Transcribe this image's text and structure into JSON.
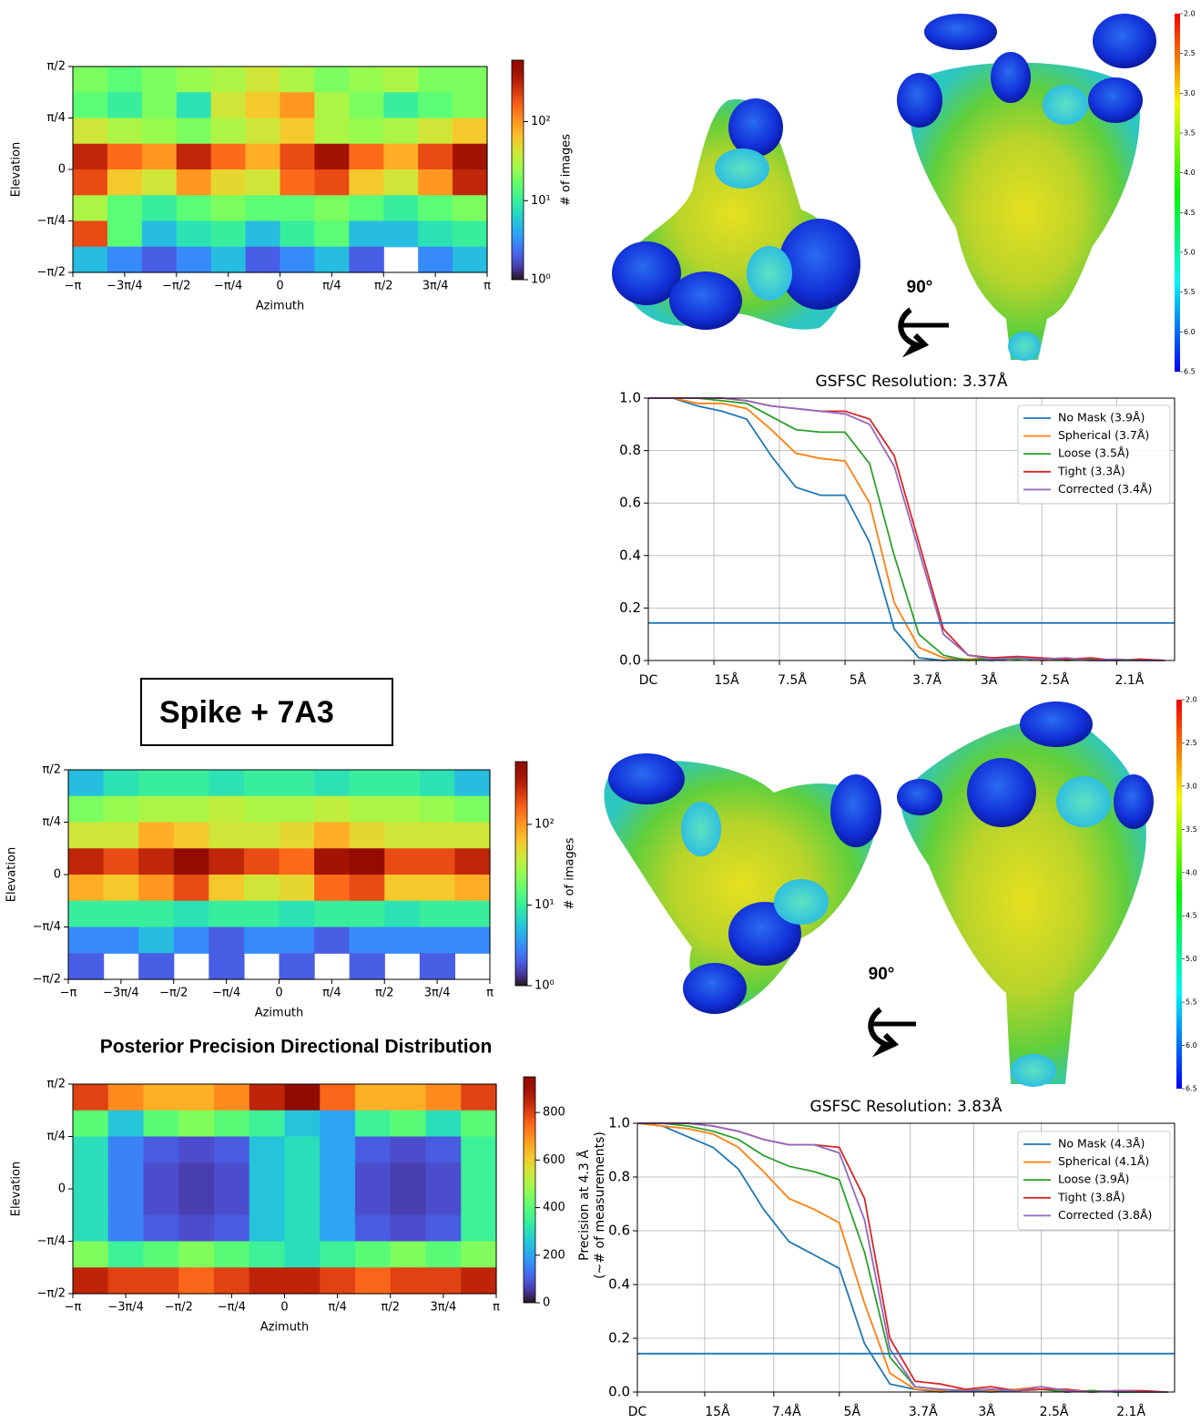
{
  "chart_data": [
    {
      "type": "heatmap",
      "xlabel": "Azimuth",
      "ylabel": "Elevation",
      "colormap": "turbo",
      "xlim": [
        -3.1416,
        3.1416
      ],
      "ylim": [
        -1.5708,
        1.5708
      ],
      "xticks": [
        {
          "value": -3.1416,
          "label": "−π"
        },
        {
          "value": -2.3562,
          "label": "−3π/4"
        },
        {
          "value": -1.5708,
          "label": "−π/2"
        },
        {
          "value": -0.7854,
          "label": "−π/4"
        },
        0,
        {
          "value": 0.7854,
          "label": "π/4"
        },
        {
          "value": 1.5708,
          "label": "π/2"
        },
        {
          "value": 2.3562,
          "label": "3π/4"
        },
        {
          "value": 3.1416,
          "label": "π"
        }
      ],
      "yticks": [
        {
          "value": -1.5708,
          "label": "−π/2"
        },
        {
          "value": -0.7854,
          "label": "−π/4"
        },
        0,
        {
          "value": 0.7854,
          "label": "π/4"
        },
        {
          "value": 1.5708,
          "label": "π/2"
        }
      ],
      "z": [
        [
          20,
          15,
          20,
          25,
          30,
          40,
          30,
          20,
          25,
          30,
          20,
          20
        ],
        [
          15,
          10,
          20,
          8,
          40,
          60,
          100,
          30,
          20,
          10,
          15,
          20
        ],
        [
          40,
          30,
          25,
          20,
          30,
          40,
          60,
          30,
          25,
          30,
          40,
          60
        ],
        [
          300,
          150,
          100,
          300,
          150,
          80,
          200,
          400,
          150,
          80,
          200,
          400
        ],
        [
          200,
          60,
          40,
          100,
          50,
          40,
          150,
          200,
          60,
          40,
          100,
          300
        ],
        [
          30,
          15,
          10,
          15,
          20,
          15,
          15,
          20,
          15,
          10,
          15,
          20
        ],
        [
          200,
          15,
          5,
          8,
          10,
          5,
          10,
          15,
          5,
          5,
          8,
          10
        ],
        [
          5,
          3,
          2,
          3,
          5,
          2,
          3,
          5,
          2,
          null,
          3,
          5
        ]
      ],
      "colorbar": {
        "label": "# of images",
        "scale": "log",
        "lim": [
          1,
          600
        ],
        "ticks": [
          {
            "value": 1,
            "label": "10⁰"
          },
          {
            "value": 10,
            "label": "10¹"
          },
          {
            "value": 100,
            "label": "10²"
          }
        ]
      }
    },
    {
      "type": "line",
      "title": "GSFSC Resolution: 3.37Å",
      "grid": true,
      "xlim": [
        0,
        0.535
      ],
      "ylim": [
        0,
        1
      ],
      "xticks": [
        {
          "value": 0,
          "label": "DC"
        },
        {
          "value": 0.0667,
          "label": "15Å"
        },
        {
          "value": 0.1333,
          "label": "7.5Å"
        },
        {
          "value": 0.2,
          "label": "5Å"
        },
        {
          "value": 0.2703,
          "label": "3.7Å"
        },
        {
          "value": 0.3333,
          "label": "3Å"
        },
        {
          "value": 0.4,
          "label": "2.5Å"
        },
        {
          "value": 0.4762,
          "label": "2.1Å"
        }
      ],
      "yticks": [
        {
          "value": 0,
          "label": "0.0"
        },
        0.2,
        0.4,
        0.6,
        0.8,
        {
          "value": 1,
          "label": "1.0"
        }
      ],
      "threshold": 0.143,
      "threshold_color": "#1f77b4",
      "x": [
        0,
        0.025,
        0.05,
        0.075,
        0.1,
        0.125,
        0.15,
        0.175,
        0.2,
        0.225,
        0.25,
        0.275,
        0.3,
        0.325,
        0.35,
        0.375,
        0.4,
        0.425,
        0.45,
        0.475,
        0.5,
        0.525
      ],
      "series": [
        {
          "name": "No Mask (3.9Å)",
          "color": "#1f77b4",
          "values": [
            1,
            1,
            0.97,
            0.95,
            0.92,
            0.78,
            0.66,
            0.63,
            0.63,
            0.45,
            0.12,
            0.01,
            0,
            0.005,
            0,
            0.01,
            0,
            0.005,
            0,
            0,
            0.005,
            0
          ]
        },
        {
          "name": "Spherical (3.7Å)",
          "color": "#ff7f0e",
          "values": [
            1,
            1,
            0.98,
            0.98,
            0.96,
            0.88,
            0.79,
            0.77,
            0.76,
            0.6,
            0.22,
            0.05,
            0.01,
            0.005,
            0.01,
            0.015,
            0,
            0.01,
            0,
            0.005,
            0,
            0
          ]
        },
        {
          "name": "Loose (3.5Å)",
          "color": "#2ca02c",
          "values": [
            1,
            1,
            1,
            0.99,
            0.98,
            0.93,
            0.88,
            0.87,
            0.87,
            0.75,
            0.4,
            0.1,
            0.02,
            0,
            0.01,
            0.005,
            0.01,
            0,
            0.005,
            0,
            0,
            0
          ]
        },
        {
          "name": "Tight (3.3Å)",
          "color": "#d62728",
          "values": [
            1,
            1,
            1,
            1,
            0.99,
            0.97,
            0.96,
            0.95,
            0.95,
            0.92,
            0.78,
            0.45,
            0.12,
            0.02,
            0.01,
            0.015,
            0.01,
            0.005,
            0.01,
            0,
            0.005,
            0
          ]
        },
        {
          "name": "Corrected (3.4Å)",
          "color": "#9467bd",
          "values": [
            1,
            1,
            1,
            1,
            0.99,
            0.97,
            0.96,
            0.95,
            0.94,
            0.9,
            0.74,
            0.42,
            0.1,
            0.02,
            0.005,
            0.01,
            0.005,
            0.01,
            0,
            0.005,
            0,
            0
          ]
        }
      ]
    },
    {
      "type": "heatmap",
      "xlabel": "Azimuth",
      "ylabel": "Elevation",
      "colormap": "turbo",
      "xlim": [
        -3.1416,
        3.1416
      ],
      "ylim": [
        -1.5708,
        1.5708
      ],
      "xticks": [
        {
          "value": -3.1416,
          "label": "−π"
        },
        {
          "value": -2.3562,
          "label": "−3π/4"
        },
        {
          "value": -1.5708,
          "label": "−π/2"
        },
        {
          "value": -0.7854,
          "label": "−π/4"
        },
        0,
        {
          "value": 0.7854,
          "label": "π/4"
        },
        {
          "value": 1.5708,
          "label": "π/2"
        },
        {
          "value": 2.3562,
          "label": "3π/4"
        },
        {
          "value": 3.1416,
          "label": "π"
        }
      ],
      "yticks": [
        {
          "value": -1.5708,
          "label": "−π/2"
        },
        {
          "value": -0.7854,
          "label": "−π/4"
        },
        0,
        {
          "value": 0.7854,
          "label": "π/4"
        },
        {
          "value": 1.5708,
          "label": "π/2"
        }
      ],
      "z": [
        [
          5,
          8,
          10,
          10,
          8,
          10,
          10,
          8,
          10,
          10,
          8,
          5
        ],
        [
          20,
          25,
          30,
          30,
          35,
          30,
          30,
          35,
          30,
          30,
          25,
          20
        ],
        [
          40,
          40,
          80,
          60,
          40,
          40,
          50,
          80,
          50,
          40,
          40,
          40
        ],
        [
          300,
          200,
          300,
          500,
          300,
          200,
          150,
          400,
          500,
          200,
          200,
          300
        ],
        [
          80,
          60,
          100,
          200,
          60,
          40,
          50,
          150,
          200,
          60,
          60,
          80
        ],
        [
          10,
          10,
          10,
          8,
          10,
          10,
          8,
          10,
          10,
          8,
          10,
          10
        ],
        [
          3,
          3,
          5,
          3,
          2,
          3,
          3,
          2,
          3,
          3,
          3,
          3
        ],
        [
          2,
          null,
          2,
          null,
          2,
          null,
          2,
          null,
          2,
          null,
          2,
          null
        ]
      ],
      "colorbar": {
        "label": "# of images",
        "scale": "log",
        "lim": [
          1,
          600
        ],
        "ticks": [
          {
            "value": 1,
            "label": "10⁰"
          },
          {
            "value": 10,
            "label": "10¹"
          },
          {
            "value": 100,
            "label": "10²"
          }
        ]
      }
    },
    {
      "type": "heatmap",
      "title": "Posterior Precision Directional Distribution",
      "xlabel": "Azimuth",
      "ylabel": "Elevation",
      "colormap": "turbo",
      "xlim": [
        -3.1416,
        3.1416
      ],
      "ylim": [
        -1.5708,
        1.5708
      ],
      "xticks": [
        {
          "value": -3.1416,
          "label": "−π"
        },
        {
          "value": -2.3562,
          "label": "−3π/4"
        },
        {
          "value": -1.5708,
          "label": "−π/2"
        },
        {
          "value": -0.7854,
          "label": "−π/4"
        },
        0,
        {
          "value": 0.7854,
          "label": "π/4"
        },
        {
          "value": 1.5708,
          "label": "π/2"
        },
        {
          "value": 2.3562,
          "label": "3π/4"
        },
        {
          "value": 3.1416,
          "label": "π"
        }
      ],
      "yticks": [
        {
          "value": -1.5708,
          "label": "−π/2"
        },
        {
          "value": -0.7854,
          "label": "−π/4"
        },
        0,
        {
          "value": 0.7854,
          "label": "π/4"
        },
        {
          "value": 1.5708,
          "label": "π/2"
        }
      ],
      "z": [
        [
          800,
          700,
          650,
          650,
          700,
          850,
          950,
          750,
          650,
          650,
          700,
          800
        ],
        [
          400,
          250,
          400,
          450,
          400,
          350,
          250,
          200,
          350,
          400,
          300,
          400
        ],
        [
          300,
          150,
          100,
          80,
          100,
          250,
          300,
          200,
          100,
          80,
          100,
          350
        ],
        [
          300,
          150,
          80,
          60,
          80,
          250,
          300,
          200,
          80,
          60,
          80,
          350
        ],
        [
          300,
          150,
          80,
          60,
          80,
          250,
          300,
          200,
          80,
          60,
          80,
          350
        ],
        [
          300,
          150,
          100,
          80,
          100,
          250,
          300,
          200,
          100,
          80,
          100,
          350
        ],
        [
          450,
          350,
          400,
          450,
          400,
          350,
          300,
          350,
          400,
          450,
          400,
          450
        ],
        [
          850,
          800,
          800,
          750,
          800,
          850,
          850,
          800,
          750,
          800,
          800,
          850
        ]
      ],
      "colorbar": {
        "scale": "linear",
        "lim": [
          0,
          950
        ],
        "ticks": [
          0,
          200,
          400,
          600,
          800
        ]
      }
    },
    {
      "type": "line",
      "title": "GSFSC Resolution: 3.83Å",
      "ylabel": [
        "Precision at 4.3 Å",
        "(~# of measurements)"
      ],
      "grid": true,
      "xlim": [
        0,
        0.532
      ],
      "ylim": [
        0,
        1
      ],
      "xticks": [
        {
          "value": 0,
          "label": "DC"
        },
        {
          "value": 0.0667,
          "label": "15Å"
        },
        {
          "value": 0.1351,
          "label": "7.4Å"
        },
        {
          "value": 0.2,
          "label": "5Å"
        },
        {
          "value": 0.2703,
          "label": "3.7Å"
        },
        {
          "value": 0.3333,
          "label": "3Å"
        },
        {
          "value": 0.4,
          "label": "2.5Å"
        },
        {
          "value": 0.4762,
          "label": "2.1Å"
        }
      ],
      "yticks": [
        {
          "value": 0,
          "label": "0.0"
        },
        0.2,
        0.4,
        0.6,
        0.8,
        {
          "value": 1,
          "label": "1.0"
        }
      ],
      "threshold": 0.143,
      "threshold_color": "#1f77b4",
      "x": [
        0,
        0.025,
        0.05,
        0.075,
        0.1,
        0.125,
        0.15,
        0.175,
        0.2,
        0.225,
        0.25,
        0.275,
        0.3,
        0.325,
        0.35,
        0.375,
        0.4,
        0.425,
        0.45,
        0.475,
        0.5,
        0.525
      ],
      "series": [
        {
          "name": "No Mask (4.3Å)",
          "color": "#1f77b4",
          "values": [
            1,
            0.99,
            0.95,
            0.91,
            0.83,
            0.68,
            0.56,
            0.51,
            0.46,
            0.18,
            0.03,
            0.01,
            0,
            0.005,
            0,
            0.005,
            0.01,
            0,
            0.005,
            0,
            0,
            0
          ]
        },
        {
          "name": "Spherical (4.1Å)",
          "color": "#ff7f0e",
          "values": [
            1,
            0.99,
            0.98,
            0.96,
            0.91,
            0.82,
            0.72,
            0.68,
            0.63,
            0.33,
            0.07,
            0.01,
            0.005,
            0.01,
            0.005,
            0.01,
            0.02,
            0.005,
            0,
            0.005,
            0,
            0
          ]
        },
        {
          "name": "Loose (3.9Å)",
          "color": "#2ca02c",
          "values": [
            1,
            1,
            0.99,
            0.97,
            0.94,
            0.88,
            0.84,
            0.82,
            0.79,
            0.52,
            0.13,
            0.02,
            0.01,
            0.005,
            0.01,
            0.005,
            0.01,
            0,
            0.005,
            0,
            0,
            0
          ]
        },
        {
          "name": "Tight (3.8Å)",
          "color": "#d62728",
          "values": [
            1,
            1,
            1,
            0.99,
            0.97,
            0.94,
            0.92,
            0.92,
            0.91,
            0.72,
            0.2,
            0.04,
            0.03,
            0.01,
            0.02,
            0.005,
            0.01,
            0.01,
            0,
            0.005,
            0.005,
            0
          ]
        },
        {
          "name": "Corrected (3.8Å)",
          "color": "#9467bd",
          "values": [
            1,
            1,
            1,
            0.99,
            0.97,
            0.94,
            0.92,
            0.92,
            0.89,
            0.64,
            0.16,
            0.02,
            0.01,
            0.005,
            0.01,
            0.005,
            0.02,
            0.005,
            0,
            0.005,
            0,
            0
          ]
        }
      ]
    }
  ],
  "sample_label": "Spike + 7A3",
  "structure_panels": [
    {
      "rotation": "90°",
      "colorbar": {
        "colormap": "rainbow",
        "lim": [
          2,
          6.5
        ],
        "ticks": [
          {
            "value": 2,
            "label": "2.0"
          },
          2.5,
          {
            "value": 3,
            "label": "3.0"
          },
          3.5,
          {
            "value": 4,
            "label": "4.0"
          },
          4.5,
          {
            "value": 5,
            "label": "5.0"
          },
          5.5,
          {
            "value": 6,
            "label": "6.0"
          },
          6.5
        ]
      }
    },
    {
      "rotation": "90°",
      "colorbar": {
        "colormap": "rainbow",
        "lim": [
          2,
          6.5
        ],
        "ticks": [
          {
            "value": 2,
            "label": "2.0"
          },
          2.5,
          {
            "value": 3,
            "label": "3.0"
          },
          3.5,
          {
            "value": 4,
            "label": "4.0"
          },
          4.5,
          {
            "value": 5,
            "label": "5.0"
          },
          5.5,
          {
            "value": 6,
            "label": "6.0"
          },
          6.5
        ]
      }
    }
  ]
}
